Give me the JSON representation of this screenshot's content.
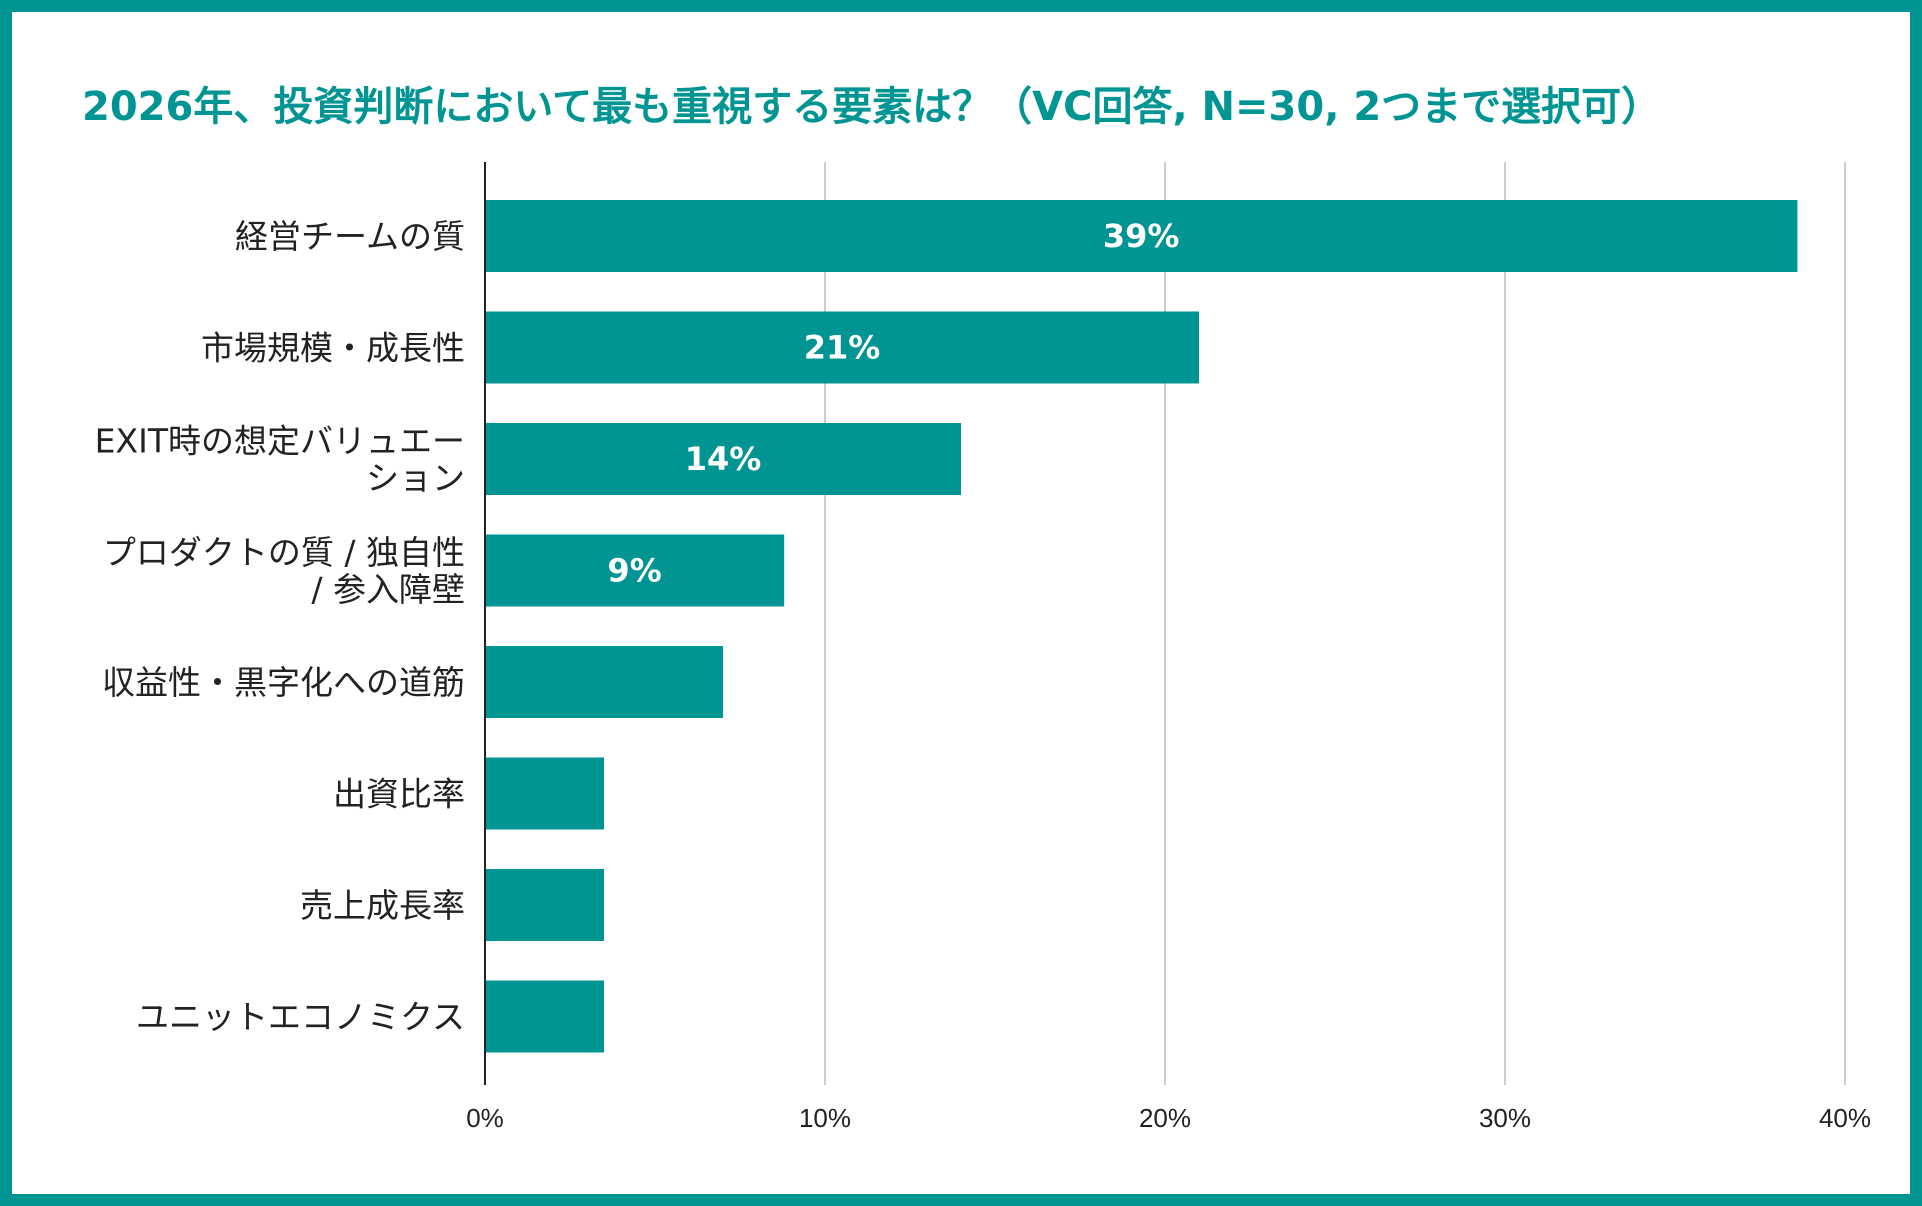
{
  "colors": {
    "accent": "#009592",
    "bar": "#009592",
    "grid": "#cccccc",
    "axis": "#222222"
  },
  "chart_data": {
    "type": "bar",
    "orientation": "horizontal",
    "title": "2026年、投資判断において最も重視する要素は？（VC回答, N=30, 2つまで選択可）",
    "categories": [
      [
        "経営チームの質"
      ],
      [
        "市場規模・成長性"
      ],
      [
        "EXIT時の想定バリュエー",
        "ション"
      ],
      [
        "プロダクトの質 / 独自性",
        "/ 参入障壁"
      ],
      [
        "収益性・黒字化への道筋"
      ],
      [
        "出資比率"
      ],
      [
        "売上成長率"
      ],
      [
        "ユニットエコノミクス"
      ]
    ],
    "values": [
      38.6,
      21.0,
      14.0,
      8.8,
      7.0,
      3.5,
      3.5,
      3.5
    ],
    "data_labels": [
      "39%",
      "21%",
      "14%",
      "9%",
      "",
      "",
      "",
      ""
    ],
    "xlim": [
      0,
      40
    ],
    "x_ticks": [
      0,
      10,
      20,
      30,
      40
    ],
    "x_tick_labels": [
      "0%",
      "10%",
      "20%",
      "30%",
      "40%"
    ],
    "grid": true,
    "legend": "none"
  }
}
